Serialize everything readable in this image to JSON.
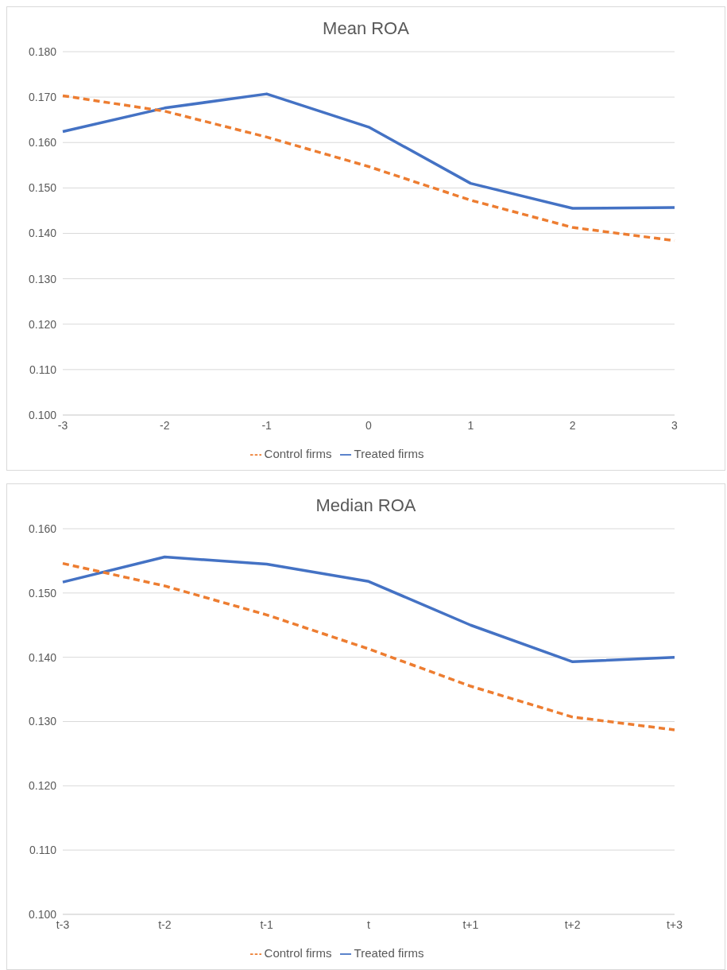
{
  "chart_data": [
    {
      "type": "line",
      "title": "Mean ROA",
      "categories": [
        "-3",
        "-2",
        "-1",
        "0",
        "1",
        "2",
        "3"
      ],
      "series": [
        {
          "name": "Treated firms",
          "color": "#4472c4",
          "line_style": "solid",
          "values": [
            0.1624,
            0.1676,
            0.1707,
            0.1634,
            0.151,
            0.1455,
            0.1457
          ]
        },
        {
          "name": "Control firms",
          "color": "#ed7d31",
          "line_style": "dashed",
          "values": [
            0.1703,
            0.1669,
            0.1612,
            0.1547,
            0.1473,
            0.1413,
            0.1384
          ]
        }
      ],
      "ylim": [
        0.1,
        0.18
      ],
      "yticks": [
        {
          "value": 0.1,
          "label": "0.100"
        },
        {
          "value": 0.11,
          "label": "0.110"
        },
        {
          "value": 0.12,
          "label": "0.120"
        },
        {
          "value": 0.13,
          "label": "0.130"
        },
        {
          "value": 0.14,
          "label": "0.140"
        },
        {
          "value": 0.15,
          "label": "0.150"
        },
        {
          "value": 0.16,
          "label": "0.160"
        },
        {
          "value": 0.17,
          "label": "0.170"
        },
        {
          "value": 0.18,
          "label": "0.180"
        }
      ],
      "grid": "y",
      "legend": "bottom",
      "marker": "none"
    },
    {
      "type": "line",
      "title": "Median ROA",
      "categories": [
        "t-3",
        "t-2",
        "t-1",
        "t",
        "t+1",
        "t+2",
        "t+3"
      ],
      "series": [
        {
          "name": "Treated firms",
          "color": "#4472c4",
          "line_style": "solid",
          "values": [
            0.1517,
            0.1556,
            0.1545,
            0.1518,
            0.145,
            0.1393,
            0.14
          ]
        },
        {
          "name": "Control firms",
          "color": "#ed7d31",
          "line_style": "dashed",
          "values": [
            0.1546,
            0.1511,
            0.1466,
            0.1413,
            0.1355,
            0.1307,
            0.1287
          ]
        }
      ],
      "ylim": [
        0.1,
        0.16
      ],
      "yticks": [
        {
          "value": 0.1,
          "label": "0.100"
        },
        {
          "value": 0.11,
          "label": "0.110"
        },
        {
          "value": 0.12,
          "label": "0.120"
        },
        {
          "value": 0.13,
          "label": "0.130"
        },
        {
          "value": 0.14,
          "label": "0.140"
        },
        {
          "value": 0.15,
          "label": "0.150"
        },
        {
          "value": 0.16,
          "label": "0.160"
        }
      ],
      "grid": "y",
      "legend": "bottom",
      "marker": "none"
    }
  ]
}
